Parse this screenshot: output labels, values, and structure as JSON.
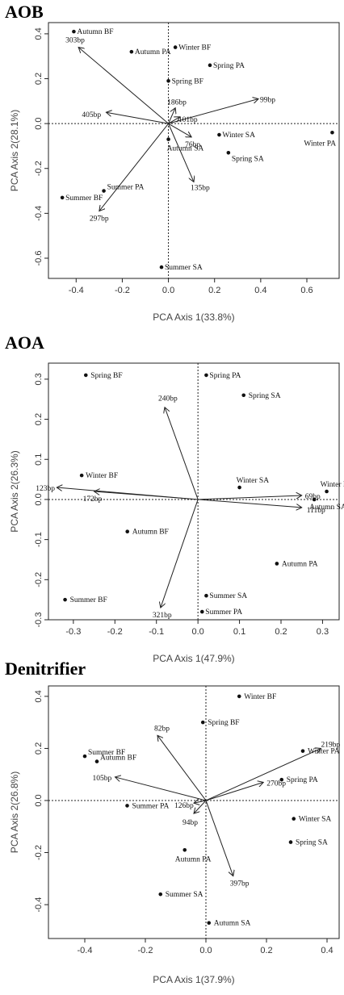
{
  "chart_data": [
    {
      "type": "scatter",
      "title": "AOB",
      "xlabel": "PCA Axis 1(33.8%)",
      "ylabel": "PCA Axis 2(28.1%)",
      "xlim": [
        -0.52,
        0.74
      ],
      "ylim": [
        -0.69,
        0.45
      ],
      "xticks": [
        -0.4,
        -0.2,
        0.0,
        0.2,
        0.4,
        0.6
      ],
      "yticks": [
        -0.6,
        -0.4,
        -0.2,
        0.0,
        0.2,
        0.4
      ],
      "points": [
        {
          "label": "Autumn BF",
          "x": -0.41,
          "y": 0.41
        },
        {
          "label": "Autumn PA",
          "x": -0.16,
          "y": 0.32
        },
        {
          "label": "Winter BF",
          "x": 0.03,
          "y": 0.34
        },
        {
          "label": "Spring PA",
          "x": 0.18,
          "y": 0.26
        },
        {
          "label": "Spring BF",
          "x": 0.0,
          "y": 0.19
        },
        {
          "label": "Winter SA",
          "x": 0.22,
          "y": -0.05
        },
        {
          "label": "Winter PA",
          "x": 0.71,
          "y": -0.04
        },
        {
          "label": "Autumn SA",
          "x": 0.0,
          "y": -0.07
        },
        {
          "label": "Spring SA",
          "x": 0.26,
          "y": -0.13
        },
        {
          "label": "Summer PA",
          "x": -0.28,
          "y": -0.3
        },
        {
          "label": "Summer BF",
          "x": -0.46,
          "y": -0.33
        },
        {
          "label": "Summer SA",
          "x": -0.03,
          "y": -0.64
        }
      ],
      "vectors": [
        {
          "label": "303bp",
          "x": -0.39,
          "y": 0.34
        },
        {
          "label": "99bp",
          "x": 0.39,
          "y": 0.11
        },
        {
          "label": "186bp",
          "x": 0.03,
          "y": 0.07
        },
        {
          "label": "101bp",
          "x": 0.05,
          "y": 0.03
        },
        {
          "label": "405bp",
          "x": -0.27,
          "y": 0.05
        },
        {
          "label": "76bp",
          "x": 0.1,
          "y": -0.06
        },
        {
          "label": "135bp",
          "x": 0.11,
          "y": -0.26
        },
        {
          "label": "297bp",
          "x": -0.3,
          "y": -0.39
        }
      ]
    },
    {
      "type": "scatter",
      "title": "AOA",
      "xlabel": "PCA Axis 1(47.9%)",
      "ylabel": "PCA Axis 2(26.3%)",
      "xlim": [
        -0.36,
        0.34
      ],
      "ylim": [
        -0.3,
        0.34
      ],
      "xticks": [
        -0.3,
        -0.2,
        -0.1,
        0.0,
        0.1,
        0.2,
        0.3
      ],
      "yticks": [
        -0.3,
        -0.2,
        -0.1,
        0.0,
        0.1,
        0.2,
        0.3
      ],
      "points": [
        {
          "label": "Spring BF",
          "x": -0.27,
          "y": 0.31
        },
        {
          "label": "Spring PA",
          "x": 0.02,
          "y": 0.31
        },
        {
          "label": "Spring SA",
          "x": 0.11,
          "y": 0.26
        },
        {
          "label": "Winter BF",
          "x": -0.28,
          "y": 0.06
        },
        {
          "label": "Winter SA",
          "x": 0.1,
          "y": 0.03
        },
        {
          "label": "Winter PA",
          "x": 0.31,
          "y": 0.02
        },
        {
          "label": "Autumn SA",
          "x": 0.28,
          "y": 0.0
        },
        {
          "label": "Autumn BF",
          "x": -0.17,
          "y": -0.08
        },
        {
          "label": "Autumn PA",
          "x": 0.19,
          "y": -0.16
        },
        {
          "label": "Summer BF",
          "x": -0.32,
          "y": -0.25
        },
        {
          "label": "Summer SA",
          "x": 0.02,
          "y": -0.24
        },
        {
          "label": "Summer PA",
          "x": 0.01,
          "y": -0.28
        }
      ],
      "vectors": [
        {
          "label": "240bp",
          "x": -0.08,
          "y": 0.23
        },
        {
          "label": "123bp",
          "x": -0.34,
          "y": 0.03
        },
        {
          "label": "172bp",
          "x": -0.25,
          "y": 0.02
        },
        {
          "label": "69bp",
          "x": 0.25,
          "y": 0.01
        },
        {
          "label": "111bp",
          "x": 0.25,
          "y": -0.02
        },
        {
          "label": "321bp",
          "x": -0.09,
          "y": -0.27
        }
      ]
    },
    {
      "type": "scatter",
      "title": "Denitrifier",
      "xlabel": "PCA Axis 1(37.9%)",
      "ylabel": "PCA Axis 2(26.8%)",
      "xlim": [
        -0.52,
        0.44
      ],
      "ylim": [
        -0.53,
        0.44
      ],
      "xticks": [
        -0.4,
        -0.2,
        0.0,
        0.2,
        0.4
      ],
      "yticks": [
        -0.4,
        -0.2,
        0.0,
        0.2,
        0.4
      ],
      "points": [
        {
          "label": "Winter BF",
          "x": 0.11,
          "y": 0.4
        },
        {
          "label": "Spring BF",
          "x": -0.01,
          "y": 0.3
        },
        {
          "label": "Winter PA",
          "x": 0.32,
          "y": 0.19
        },
        {
          "label": "Summer BF",
          "x": -0.4,
          "y": 0.17
        },
        {
          "label": "Autumn BF",
          "x": -0.36,
          "y": 0.15
        },
        {
          "label": "Spring PA",
          "x": 0.25,
          "y": 0.08
        },
        {
          "label": "Summer PA",
          "x": -0.26,
          "y": -0.02
        },
        {
          "label": "Winter SA",
          "x": 0.29,
          "y": -0.07
        },
        {
          "label": "Spring SA",
          "x": 0.28,
          "y": -0.16
        },
        {
          "label": "Autumn PA",
          "x": -0.07,
          "y": -0.19
        },
        {
          "label": "Summer SA",
          "x": -0.15,
          "y": -0.36
        },
        {
          "label": "Autumn SA",
          "x": 0.01,
          "y": -0.47
        }
      ],
      "vectors": [
        {
          "label": "82bp",
          "x": -0.16,
          "y": 0.25
        },
        {
          "label": "219bp",
          "x": 0.38,
          "y": 0.2
        },
        {
          "label": "105bp",
          "x": -0.3,
          "y": 0.09
        },
        {
          "label": "270bp",
          "x": 0.19,
          "y": 0.07
        },
        {
          "label": "126bp",
          "x": -0.04,
          "y": -0.01
        },
        {
          "label": "94bp",
          "x": -0.04,
          "y": -0.05
        },
        {
          "label": "397bp",
          "x": 0.09,
          "y": -0.29
        }
      ]
    }
  ]
}
